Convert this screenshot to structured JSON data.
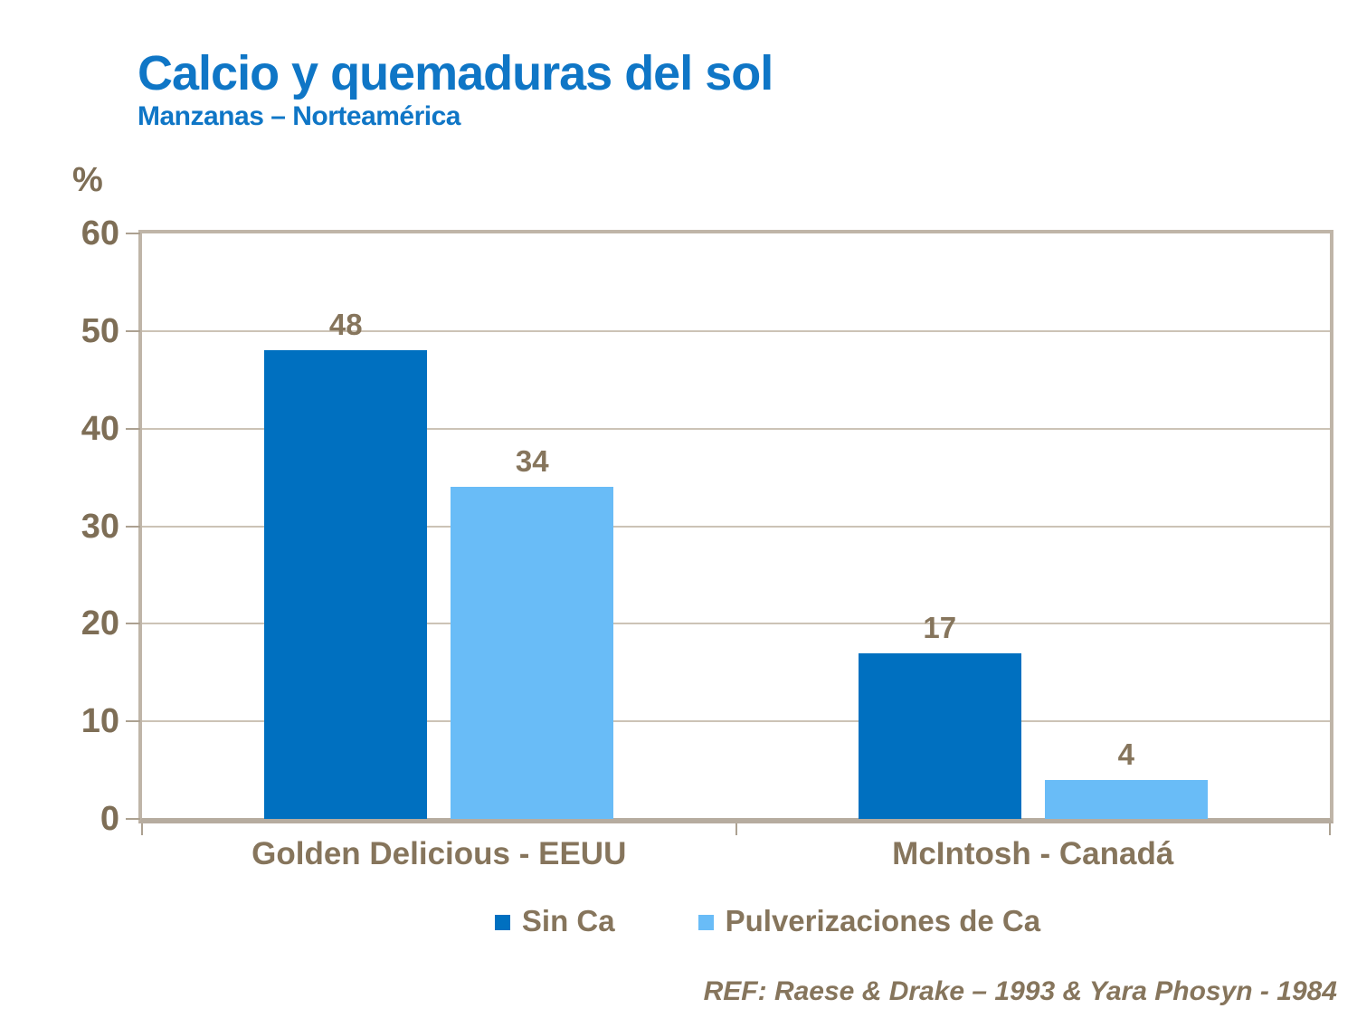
{
  "header": {
    "title": "Calcio y quemaduras del sol",
    "subtitle": "Manzanas – Norteamérica"
  },
  "chart_data": {
    "type": "bar",
    "title": "Calcio y quemaduras del sol",
    "subtitle": "Manzanas – Norteamérica",
    "categories": [
      "Golden Delicious - EEUU",
      "McIntosh - Canadá"
    ],
    "series": [
      {
        "name": "Sin Ca",
        "color": "#0070C0",
        "values": [
          48,
          17
        ]
      },
      {
        "name": "Pulverizaciones de Ca",
        "color": "#69BCF7",
        "values": [
          34,
          4
        ]
      }
    ],
    "xlabel": "",
    "ylabel": "%",
    "ylim": [
      0,
      60
    ],
    "yticks": [
      0,
      10,
      20,
      30,
      40,
      50,
      60
    ],
    "grid": true,
    "legend_position": "bottom"
  },
  "footer": {
    "ref": "REF: Raese & Drake – 1993 & Yara Phosyn - 1984"
  },
  "colors": {
    "title_blue": "#0F76C6",
    "series_dark_blue": "#0070C0",
    "series_light_blue": "#69BCF7",
    "text_brown": "#86755C",
    "axis_text_brown": "#7E6E56",
    "gridline": "#CCC3B6",
    "frame": "#BFB5A8"
  }
}
